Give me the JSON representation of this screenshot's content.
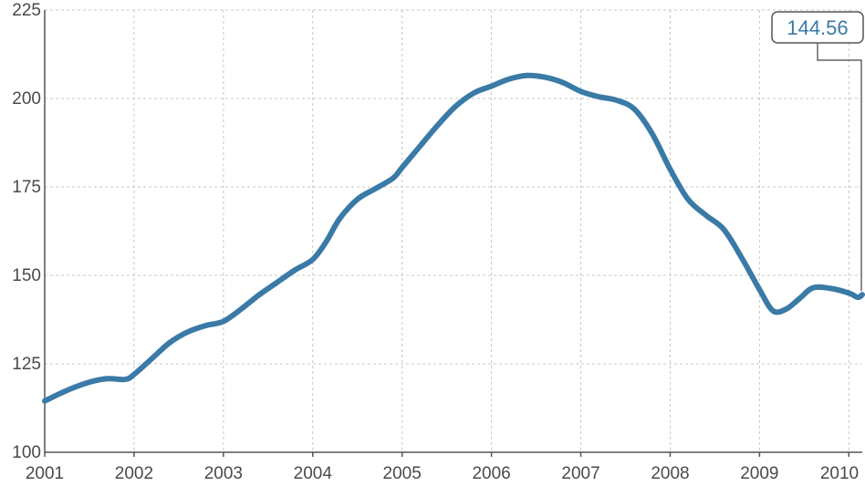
{
  "chart_data": {
    "type": "line",
    "title": "",
    "xlabel": "",
    "ylabel": "",
    "xlim": [
      2001.0,
      2010.15
    ],
    "ylim": [
      100,
      225
    ],
    "y_ticks": [
      100,
      125,
      150,
      175,
      200,
      225
    ],
    "x_ticks": [
      2001,
      2002,
      2003,
      2004,
      2005,
      2006,
      2007,
      2008,
      2009,
      2010
    ],
    "grid": true,
    "series": [
      {
        "color": "#3a7aa6",
        "x": [
          2001.0,
          2001.25,
          2001.5,
          2001.7,
          2001.9,
          2002.0,
          2002.2,
          2002.4,
          2002.6,
          2002.8,
          2003.0,
          2003.2,
          2003.4,
          2003.6,
          2003.8,
          2004.0,
          2004.15,
          2004.3,
          2004.5,
          2004.7,
          2004.9,
          2005.0,
          2005.2,
          2005.4,
          2005.6,
          2005.8,
          2006.0,
          2006.2,
          2006.4,
          2006.6,
          2006.8,
          2007.0,
          2007.2,
          2007.4,
          2007.6,
          2007.8,
          2008.0,
          2008.2,
          2008.4,
          2008.6,
          2008.8,
          2009.0,
          2009.15,
          2009.3,
          2009.45,
          2009.6,
          2009.8,
          2010.0,
          2010.1,
          2010.15
        ],
        "y": [
          114.5,
          117.5,
          119.8,
          120.8,
          120.6,
          122.0,
          126.5,
          131.0,
          134.0,
          135.8,
          137.0,
          140.5,
          144.5,
          148.0,
          151.5,
          154.5,
          159.5,
          166.0,
          171.5,
          174.5,
          177.5,
          180.5,
          186.5,
          192.5,
          197.8,
          201.5,
          203.5,
          205.5,
          206.5,
          206.0,
          204.5,
          202.0,
          200.5,
          199.5,
          197.0,
          190.0,
          180.0,
          171.5,
          167.0,
          163.0,
          155.0,
          146.0,
          140.0,
          140.5,
          143.5,
          146.5,
          146.3,
          145.0,
          143.8,
          144.56
        ]
      }
    ],
    "annotations": [
      {
        "text": "144.56",
        "x": 2010.15,
        "y": 144.56,
        "color": "#3a7aa6"
      }
    ]
  }
}
